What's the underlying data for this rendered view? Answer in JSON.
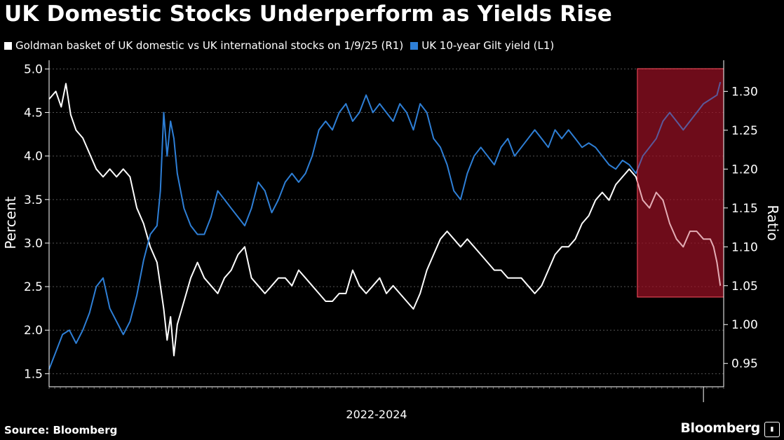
{
  "header": {
    "title": "UK Domestic Stocks Underperform as Yields Rise"
  },
  "legend": {
    "items": [
      {
        "label": "Goldman basket of UK domestic vs UK international stocks on 1/9/25 (R1)",
        "color": "#ffffff"
      },
      {
        "label": "UK 10-year Gilt yield (L1)",
        "color": "#2e7fd6"
      }
    ]
  },
  "footer": {
    "source": "Source: Bloomberg",
    "brand": "Bloomberg"
  },
  "chart_data": {
    "type": "line",
    "xlabel": "2022-2024",
    "ylabel_left": "Percent",
    "ylabel_right": "Ratio",
    "ylim_left": [
      1.35,
      5.1
    ],
    "ylim_right": [
      0.92,
      1.34
    ],
    "yticks_left": [
      "5.0",
      "4.5",
      "4.0",
      "3.5",
      "3.0",
      "2.5",
      "2.0",
      "1.5"
    ],
    "yticks_right": [
      "1.30",
      "1.25",
      "1.20",
      "1.15",
      "1.10",
      "1.05",
      "1.00",
      "0.95"
    ],
    "grid": true,
    "highlight": {
      "color": "#8b1020",
      "border": "#ff5060",
      "t_start": 0.872,
      "t_end": 1.0
    },
    "series": [
      {
        "name": "Goldman basket of UK domestic vs UK international stocks on 1/9/25 (R1)",
        "axis": "right",
        "color": "#ffffff",
        "points": [
          [
            0.0,
            1.29
          ],
          [
            0.01,
            1.3
          ],
          [
            0.018,
            1.28
          ],
          [
            0.025,
            1.31
          ],
          [
            0.032,
            1.27
          ],
          [
            0.04,
            1.25
          ],
          [
            0.05,
            1.24
          ],
          [
            0.06,
            1.22
          ],
          [
            0.07,
            1.2
          ],
          [
            0.08,
            1.19
          ],
          [
            0.09,
            1.2
          ],
          [
            0.1,
            1.19
          ],
          [
            0.11,
            1.2
          ],
          [
            0.12,
            1.19
          ],
          [
            0.13,
            1.15
          ],
          [
            0.14,
            1.13
          ],
          [
            0.15,
            1.1
          ],
          [
            0.16,
            1.08
          ],
          [
            0.17,
            1.02
          ],
          [
            0.175,
            0.98
          ],
          [
            0.18,
            1.01
          ],
          [
            0.185,
            0.96
          ],
          [
            0.19,
            1.0
          ],
          [
            0.2,
            1.03
          ],
          [
            0.21,
            1.06
          ],
          [
            0.22,
            1.08
          ],
          [
            0.23,
            1.06
          ],
          [
            0.24,
            1.05
          ],
          [
            0.25,
            1.04
          ],
          [
            0.26,
            1.06
          ],
          [
            0.27,
            1.07
          ],
          [
            0.28,
            1.09
          ],
          [
            0.29,
            1.1
          ],
          [
            0.3,
            1.06
          ],
          [
            0.31,
            1.05
          ],
          [
            0.32,
            1.04
          ],
          [
            0.33,
            1.05
          ],
          [
            0.34,
            1.06
          ],
          [
            0.35,
            1.06
          ],
          [
            0.36,
            1.05
          ],
          [
            0.37,
            1.07
          ],
          [
            0.38,
            1.06
          ],
          [
            0.39,
            1.05
          ],
          [
            0.4,
            1.04
          ],
          [
            0.41,
            1.03
          ],
          [
            0.42,
            1.03
          ],
          [
            0.43,
            1.04
          ],
          [
            0.44,
            1.04
          ],
          [
            0.45,
            1.07
          ],
          [
            0.46,
            1.05
          ],
          [
            0.47,
            1.04
          ],
          [
            0.48,
            1.05
          ],
          [
            0.49,
            1.06
          ],
          [
            0.5,
            1.04
          ],
          [
            0.51,
            1.05
          ],
          [
            0.52,
            1.04
          ],
          [
            0.53,
            1.03
          ],
          [
            0.54,
            1.02
          ],
          [
            0.55,
            1.04
          ],
          [
            0.56,
            1.07
          ],
          [
            0.57,
            1.09
          ],
          [
            0.58,
            1.11
          ],
          [
            0.59,
            1.12
          ],
          [
            0.6,
            1.11
          ],
          [
            0.61,
            1.1
          ],
          [
            0.62,
            1.11
          ],
          [
            0.63,
            1.1
          ],
          [
            0.64,
            1.09
          ],
          [
            0.65,
            1.08
          ],
          [
            0.66,
            1.07
          ],
          [
            0.67,
            1.07
          ],
          [
            0.68,
            1.06
          ],
          [
            0.69,
            1.06
          ],
          [
            0.7,
            1.06
          ],
          [
            0.71,
            1.05
          ],
          [
            0.72,
            1.04
          ],
          [
            0.73,
            1.05
          ],
          [
            0.74,
            1.07
          ],
          [
            0.75,
            1.09
          ],
          [
            0.76,
            1.1
          ],
          [
            0.77,
            1.1
          ],
          [
            0.78,
            1.11
          ],
          [
            0.79,
            1.13
          ],
          [
            0.8,
            1.14
          ],
          [
            0.81,
            1.16
          ],
          [
            0.82,
            1.17
          ],
          [
            0.83,
            1.16
          ],
          [
            0.84,
            1.18
          ],
          [
            0.85,
            1.19
          ],
          [
            0.86,
            1.2
          ],
          [
            0.87,
            1.19
          ],
          [
            0.88,
            1.16
          ],
          [
            0.89,
            1.15
          ],
          [
            0.9,
            1.17
          ],
          [
            0.91,
            1.16
          ],
          [
            0.92,
            1.13
          ],
          [
            0.93,
            1.11
          ],
          [
            0.94,
            1.1
          ],
          [
            0.95,
            1.12
          ],
          [
            0.96,
            1.12
          ],
          [
            0.97,
            1.11
          ],
          [
            0.98,
            1.11
          ],
          [
            0.985,
            1.1
          ],
          [
            0.99,
            1.08
          ],
          [
            0.995,
            1.05
          ]
        ]
      },
      {
        "name": "UK 10-year Gilt yield (L1)",
        "axis": "left",
        "color": "#2e7fd6",
        "points": [
          [
            0.0,
            1.55
          ],
          [
            0.01,
            1.75
          ],
          [
            0.02,
            1.95
          ],
          [
            0.03,
            2.0
          ],
          [
            0.04,
            1.85
          ],
          [
            0.05,
            2.0
          ],
          [
            0.06,
            2.2
          ],
          [
            0.07,
            2.5
          ],
          [
            0.08,
            2.6
          ],
          [
            0.09,
            2.25
          ],
          [
            0.1,
            2.1
          ],
          [
            0.11,
            1.95
          ],
          [
            0.12,
            2.1
          ],
          [
            0.13,
            2.4
          ],
          [
            0.14,
            2.8
          ],
          [
            0.15,
            3.1
          ],
          [
            0.16,
            3.2
          ],
          [
            0.165,
            3.6
          ],
          [
            0.17,
            4.5
          ],
          [
            0.175,
            4.0
          ],
          [
            0.18,
            4.4
          ],
          [
            0.185,
            4.2
          ],
          [
            0.19,
            3.8
          ],
          [
            0.2,
            3.4
          ],
          [
            0.21,
            3.2
          ],
          [
            0.22,
            3.1
          ],
          [
            0.23,
            3.1
          ],
          [
            0.24,
            3.3
          ],
          [
            0.25,
            3.6
          ],
          [
            0.26,
            3.5
          ],
          [
            0.27,
            3.4
          ],
          [
            0.28,
            3.3
          ],
          [
            0.29,
            3.2
          ],
          [
            0.3,
            3.4
          ],
          [
            0.31,
            3.7
          ],
          [
            0.32,
            3.6
          ],
          [
            0.33,
            3.35
          ],
          [
            0.34,
            3.5
          ],
          [
            0.35,
            3.7
          ],
          [
            0.36,
            3.8
          ],
          [
            0.37,
            3.7
          ],
          [
            0.38,
            3.8
          ],
          [
            0.39,
            4.0
          ],
          [
            0.4,
            4.3
          ],
          [
            0.41,
            4.4
          ],
          [
            0.42,
            4.3
          ],
          [
            0.43,
            4.5
          ],
          [
            0.44,
            4.6
          ],
          [
            0.45,
            4.4
          ],
          [
            0.46,
            4.5
          ],
          [
            0.47,
            4.7
          ],
          [
            0.48,
            4.5
          ],
          [
            0.49,
            4.6
          ],
          [
            0.5,
            4.5
          ],
          [
            0.51,
            4.4
          ],
          [
            0.52,
            4.6
          ],
          [
            0.53,
            4.5
          ],
          [
            0.54,
            4.3
          ],
          [
            0.55,
            4.6
          ],
          [
            0.56,
            4.5
          ],
          [
            0.57,
            4.2
          ],
          [
            0.58,
            4.1
          ],
          [
            0.59,
            3.9
          ],
          [
            0.6,
            3.6
          ],
          [
            0.61,
            3.5
          ],
          [
            0.62,
            3.8
          ],
          [
            0.63,
            4.0
          ],
          [
            0.64,
            4.1
          ],
          [
            0.65,
            4.0
          ],
          [
            0.66,
            3.9
          ],
          [
            0.67,
            4.1
          ],
          [
            0.68,
            4.2
          ],
          [
            0.69,
            4.0
          ],
          [
            0.7,
            4.1
          ],
          [
            0.71,
            4.2
          ],
          [
            0.72,
            4.3
          ],
          [
            0.73,
            4.2
          ],
          [
            0.74,
            4.1
          ],
          [
            0.75,
            4.3
          ],
          [
            0.76,
            4.2
          ],
          [
            0.77,
            4.3
          ],
          [
            0.78,
            4.2
          ],
          [
            0.79,
            4.1
          ],
          [
            0.8,
            4.15
          ],
          [
            0.81,
            4.1
          ],
          [
            0.82,
            4.0
          ],
          [
            0.83,
            3.9
          ],
          [
            0.84,
            3.85
          ],
          [
            0.85,
            3.95
          ],
          [
            0.86,
            3.9
          ],
          [
            0.87,
            3.8
          ],
          [
            0.88,
            4.0
          ],
          [
            0.89,
            4.1
          ],
          [
            0.9,
            4.2
          ],
          [
            0.91,
            4.4
          ],
          [
            0.92,
            4.5
          ],
          [
            0.93,
            4.4
          ],
          [
            0.94,
            4.3
          ],
          [
            0.95,
            4.4
          ],
          [
            0.96,
            4.5
          ],
          [
            0.97,
            4.6
          ],
          [
            0.98,
            4.65
          ],
          [
            0.99,
            4.7
          ],
          [
            0.995,
            4.85
          ]
        ]
      }
    ]
  }
}
